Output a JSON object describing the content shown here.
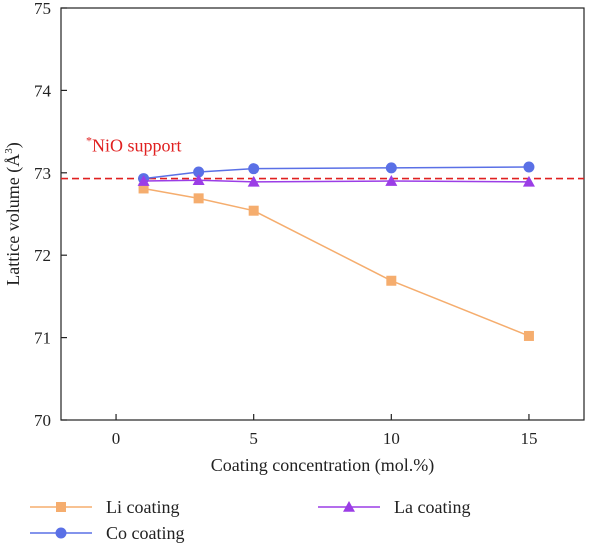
{
  "chart_data": {
    "type": "line",
    "xlabel": "Coating concentration (mol.%)",
    "ylabel": "Lattice volume (Å",
    "ylabel_sup": "3",
    "ylabel_tail": ")",
    "xlim": [
      -2,
      17
    ],
    "ylim": [
      70,
      75
    ],
    "xticks": [
      0,
      5,
      10,
      15
    ],
    "yticks": [
      70,
      71,
      72,
      73,
      74,
      75
    ],
    "grid": false,
    "legend_position": "bottom",
    "reference_line": {
      "y": 72.93,
      "label_sup": "*",
      "label": "NiO support",
      "color": "#e02020",
      "style": "dashed"
    },
    "series": [
      {
        "name": "Li coating",
        "marker": "square",
        "color": "#f5ad6e",
        "x": [
          1,
          3,
          5,
          10,
          15
        ],
        "y": [
          72.81,
          72.69,
          72.54,
          71.69,
          71.02
        ]
      },
      {
        "name": "Co coating",
        "marker": "circle",
        "color": "#5a70e6",
        "x": [
          1,
          3,
          5,
          10,
          15
        ],
        "y": [
          72.93,
          73.01,
          73.05,
          73.06,
          73.07
        ]
      },
      {
        "name": "La coating",
        "marker": "triangle",
        "color": "#9b3de6",
        "x": [
          1,
          3,
          5,
          10,
          15
        ],
        "y": [
          72.9,
          72.91,
          72.89,
          72.9,
          72.89
        ]
      }
    ]
  }
}
